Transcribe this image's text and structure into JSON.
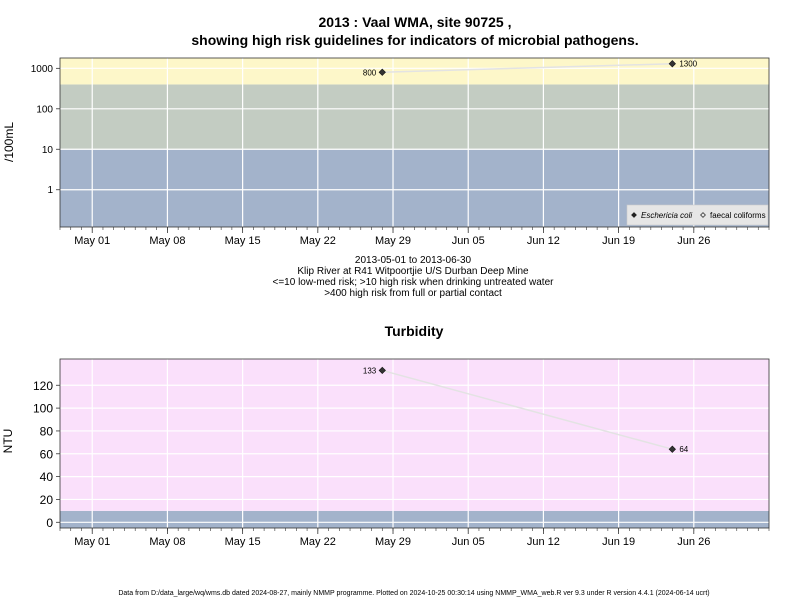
{
  "page": {
    "title_line1": "2013 : Vaal WMA, site 90725 ,",
    "title_line2": "showing high risk guidelines for indicators of microbial pathogens.",
    "info_lines": [
      "2013-05-01 to 2013-06-30",
      "Klip River at R41 Witpoortjie U/S Durban Deep Mine",
      "<=10 low-med risk; >10 high risk when drinking untreated water",
      ">400 high risk from full or partial contact"
    ],
    "footer": "Data from D:/data_large/wq/wms.db dated 2024-08-27, mainly NMMP programme. Plotted on 2024-10-25 00:30:14 using NMMP_WMA_web.R ver 9.3 under R version 4.4.1 (2024-06-14 ucrt)"
  },
  "colors": {
    "band_blue": "#a3b3cb",
    "band_grey": "#c3ccc2",
    "band_yellow": "#fdf7c9",
    "band_pink": "#fae0fb",
    "grid": "#ffffff",
    "line": "#e3e3e3",
    "point": "#333333",
    "axis": "#333333"
  },
  "chart_data": [
    {
      "type": "line",
      "title": "",
      "xlabel": "",
      "ylabel": "/100mL",
      "yscale": "log",
      "ylim": [
        0.12,
        1800
      ],
      "xlim": [
        "2013-04-28",
        "2013-07-03"
      ],
      "yticks": [
        1,
        10,
        100,
        1000
      ],
      "ytick_labels": [
        "1",
        "10",
        "100",
        "1000"
      ],
      "xticks": [
        "2013-05-01",
        "2013-05-08",
        "2013-05-15",
        "2013-05-22",
        "2013-05-29",
        "2013-06-05",
        "2013-06-12",
        "2013-06-19",
        "2013-06-26"
      ],
      "xtick_labels": [
        "May 01",
        "May 08",
        "May 15",
        "May 22",
        "May 29",
        "Jun 05",
        "Jun 12",
        "Jun 19",
        "Jun 26"
      ],
      "bands": [
        {
          "from": 0.12,
          "to": 10,
          "color": "#a3b3cb"
        },
        {
          "from": 10,
          "to": 400,
          "color": "#c3ccc2"
        },
        {
          "from": 400,
          "to": 1800,
          "color": "#fdf7c9"
        }
      ],
      "grid": true,
      "legend_position": "bottom-right",
      "series": [
        {
          "name": "Eschericia coli",
          "marker": "filled-diamond",
          "x": [
            "2013-05-28",
            "2013-06-24"
          ],
          "values": [
            800,
            1300
          ],
          "labels": [
            "800",
            "1300"
          ],
          "label_sides": [
            "left",
            "right"
          ]
        },
        {
          "name": "faecal coliforms",
          "marker": "open-diamond",
          "x": [],
          "values": []
        }
      ]
    },
    {
      "type": "line",
      "title": "Turbidity",
      "xlabel": "",
      "ylabel": "NTU",
      "ylim": [
        -5,
        143
      ],
      "xlim": [
        "2013-04-28",
        "2013-07-03"
      ],
      "yticks": [
        0,
        20,
        40,
        60,
        80,
        100,
        120
      ],
      "ytick_labels": [
        "0",
        "20",
        "40",
        "60",
        "80",
        "100",
        "120"
      ],
      "xticks": [
        "2013-05-01",
        "2013-05-08",
        "2013-05-15",
        "2013-05-22",
        "2013-05-29",
        "2013-06-05",
        "2013-06-12",
        "2013-06-19",
        "2013-06-26"
      ],
      "xtick_labels": [
        "May 01",
        "May 08",
        "May 15",
        "May 22",
        "May 29",
        "Jun 05",
        "Jun 12",
        "Jun 19",
        "Jun 26"
      ],
      "bands": [
        {
          "from": -5,
          "to": 10,
          "color": "#a3b3cb"
        },
        {
          "from": 10,
          "to": 143,
          "color": "#fae0fb"
        }
      ],
      "grid": true,
      "series": [
        {
          "name": "",
          "marker": "filled-diamond",
          "x": [
            "2013-05-28",
            "2013-06-24"
          ],
          "values": [
            133,
            64
          ],
          "labels": [
            "133",
            "64"
          ],
          "label_sides": [
            "left",
            "right"
          ]
        }
      ]
    }
  ]
}
